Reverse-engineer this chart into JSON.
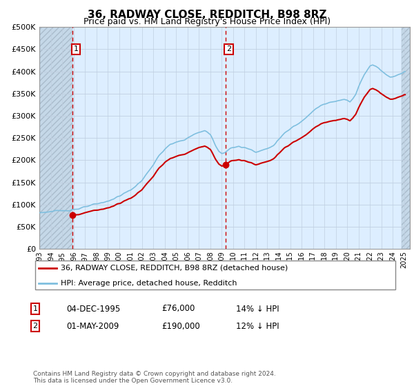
{
  "title": "36, RADWAY CLOSE, REDDITCH, B98 8RZ",
  "subtitle": "Price paid vs. HM Land Registry's House Price Index (HPI)",
  "legend_line1": "36, RADWAY CLOSE, REDDITCH, B98 8RZ (detached house)",
  "legend_line2": "HPI: Average price, detached house, Redditch",
  "annotation1_date": "04-DEC-1995",
  "annotation1_price": "£76,000",
  "annotation1_hpi": "14% ↓ HPI",
  "annotation2_date": "01-MAY-2009",
  "annotation2_price": "£190,000",
  "annotation2_hpi": "12% ↓ HPI",
  "footer": "Contains HM Land Registry data © Crown copyright and database right 2024.\nThis data is licensed under the Open Government Licence v3.0.",
  "ylim": [
    0,
    500000
  ],
  "yticks": [
    0,
    50000,
    100000,
    150000,
    200000,
    250000,
    300000,
    350000,
    400000,
    450000,
    500000
  ],
  "hpi_color": "#7fbfdf",
  "price_color": "#cc0000",
  "dot_color": "#cc0000",
  "vline_color": "#cc0000",
  "background_plot": "#ddeeff",
  "background_hatch_color": "#c5d8e8",
  "grid_color": "#c8d8e8",
  "border_color": "#aaaaaa",
  "sale1_year": 1995.917,
  "sale1_price": 76000,
  "sale2_year": 2009.333,
  "sale2_price": 190000
}
